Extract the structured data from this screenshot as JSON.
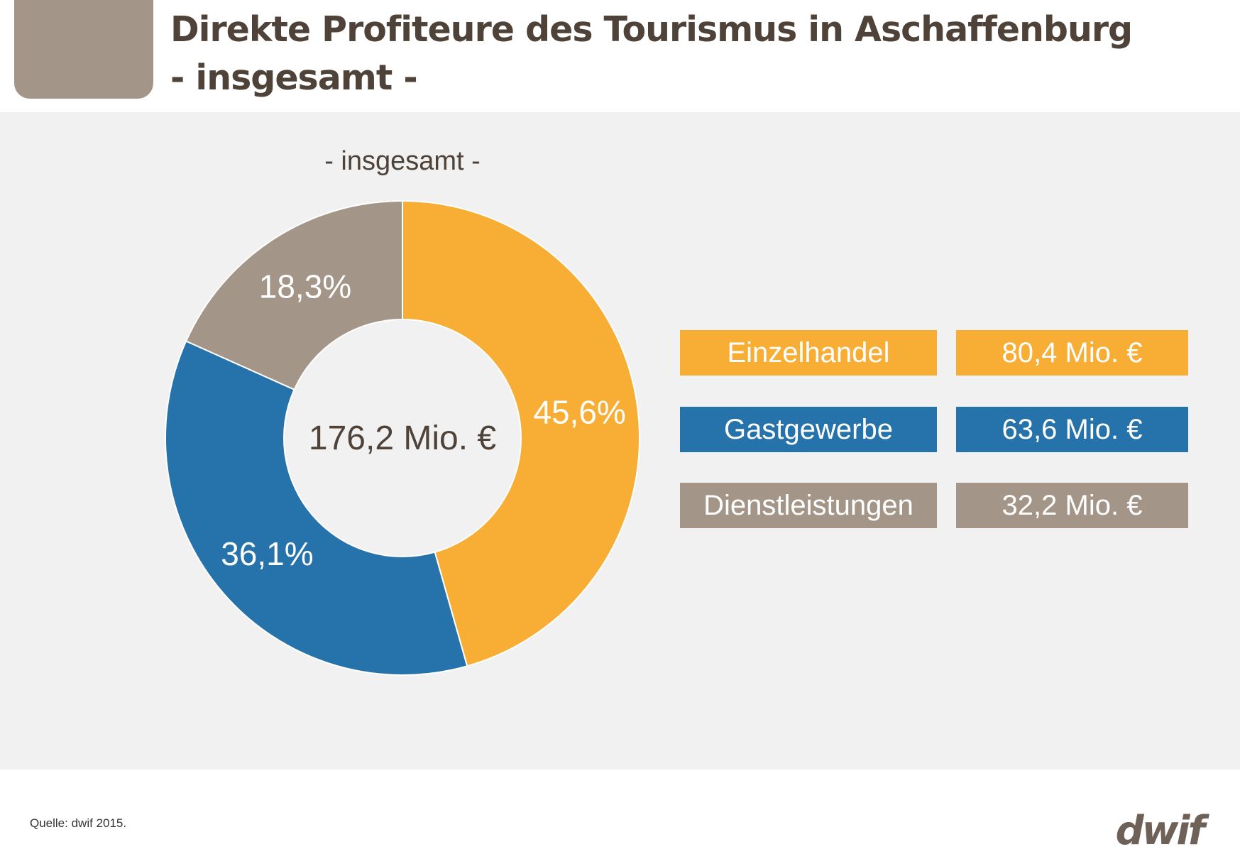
{
  "header": {
    "title_line1": "Direkte Profiteure des Tourismus in Aschaffenburg",
    "title_line2": "- insgesamt -"
  },
  "chart_data": {
    "type": "pie",
    "title": "- insgesamt -",
    "center_label": "176,2 Mio. €",
    "categories": [
      "Einzelhandel",
      "Gastgewerbe",
      "Dienstleistungen"
    ],
    "values": [
      45.6,
      36.1,
      18.3
    ],
    "value_labels": [
      "45,6%",
      "36,1%",
      "18,3%"
    ],
    "amounts": [
      "80,4 Mio. €",
      "63,6 Mio. €",
      "32,2 Mio. €"
    ],
    "colors": [
      "#f8ae35",
      "#2672ab",
      "#a39587"
    ]
  },
  "footer": {
    "source": "Quelle: dwif 2015.",
    "logo": "dwif"
  }
}
